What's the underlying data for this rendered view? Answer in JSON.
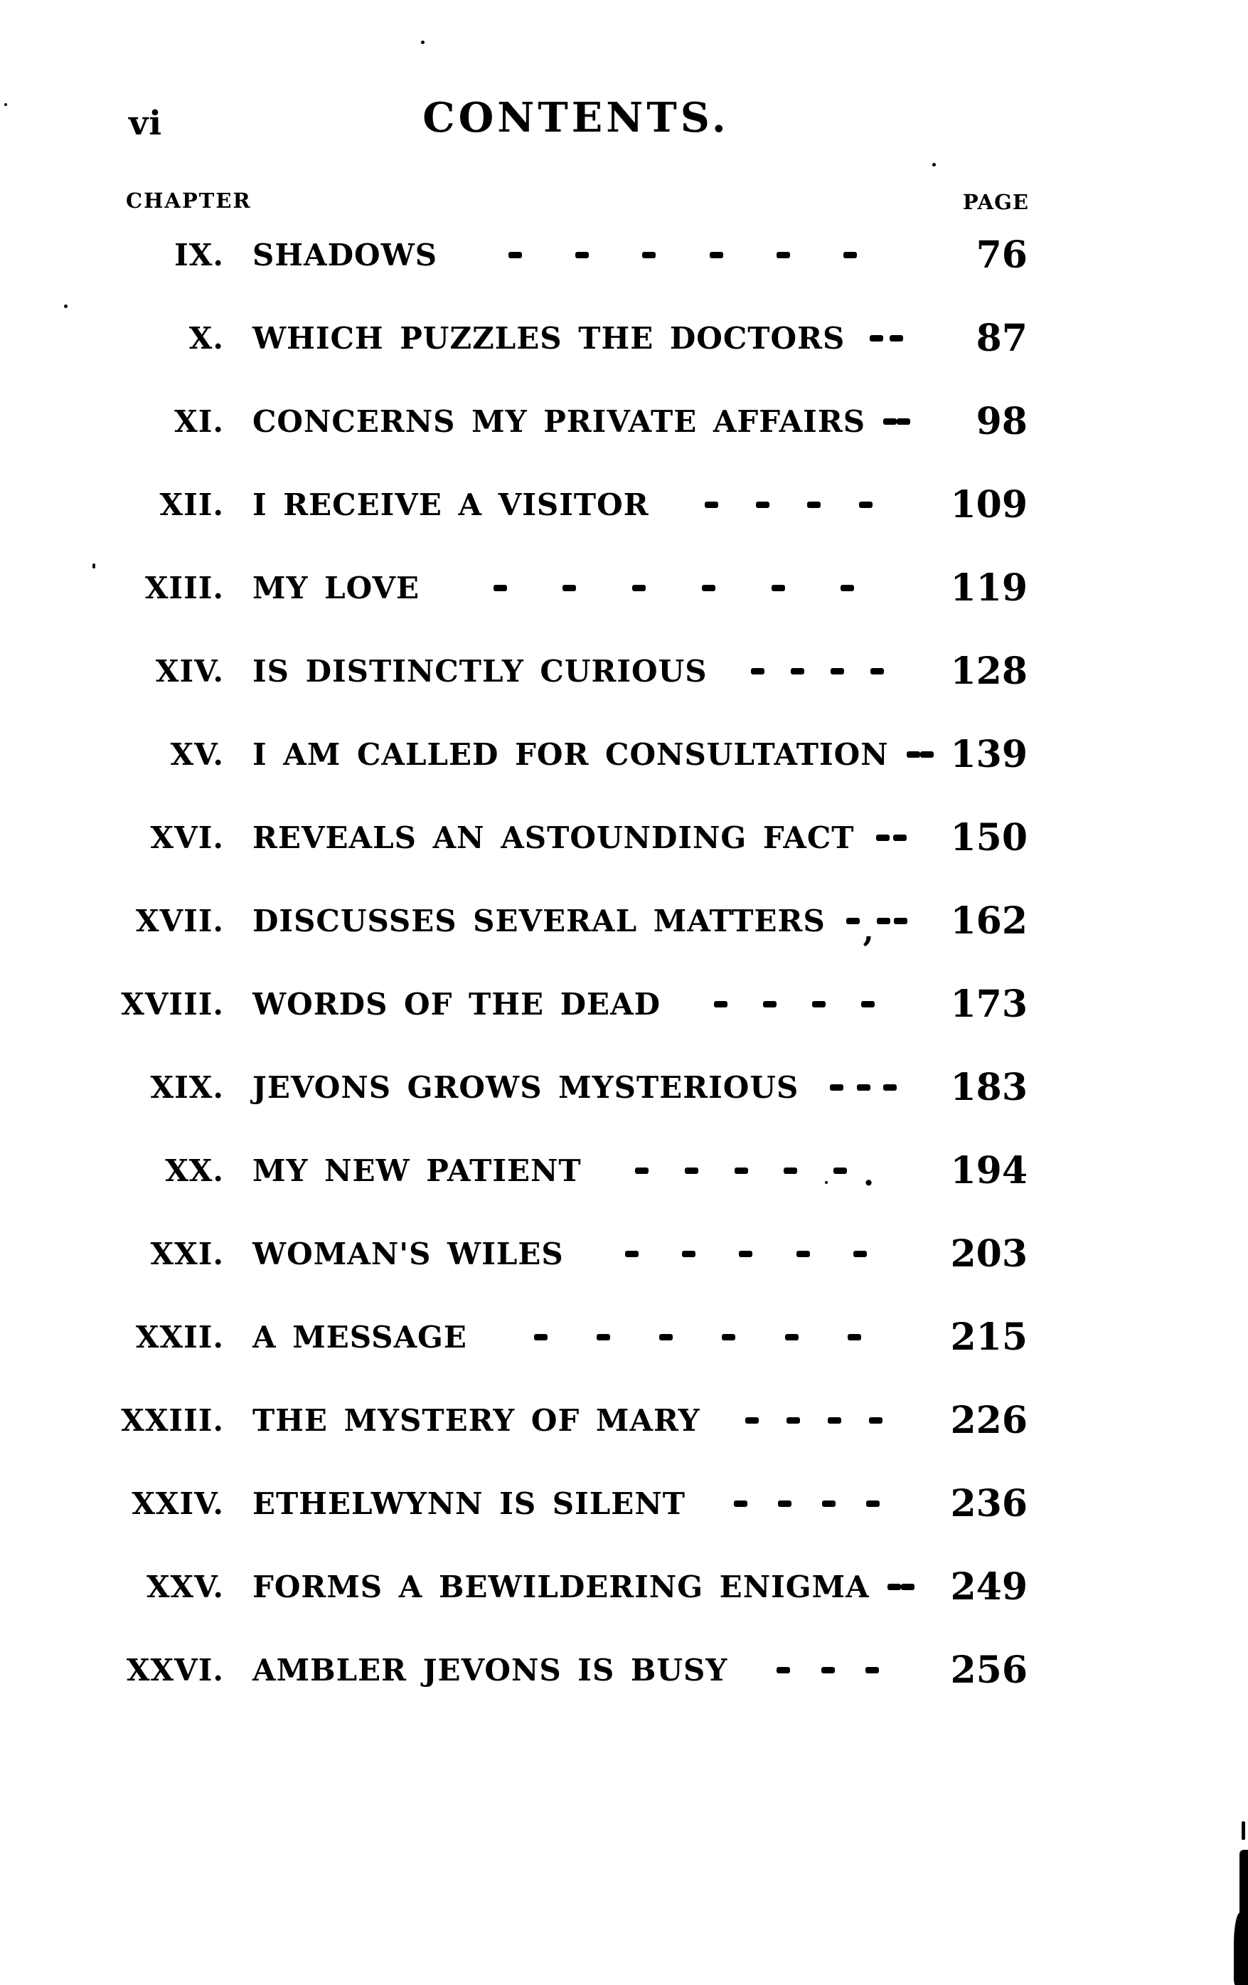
{
  "page": {
    "folio": "vi",
    "title": "CONTENTS.",
    "chapter_label": "CHAPTER",
    "page_label": "PAGE"
  },
  "toc": {
    "entries": [
      {
        "numeral": "IX.",
        "title": "SHADOWS",
        "dashes": 6,
        "page": "76"
      },
      {
        "numeral": "X.",
        "title": "WHICH PUZZLES THE DOCTORS",
        "dashes": 2,
        "page": "87"
      },
      {
        "numeral": "XI.",
        "title": "CONCERNS MY PRIVATE AFFAIRS",
        "dashes": 2,
        "page": "98"
      },
      {
        "numeral": "XII.",
        "title": "I RECEIVE A VISITOR",
        "dashes": 4,
        "page": "109"
      },
      {
        "numeral": "XIII.",
        "title": "MY LOVE",
        "dashes": 6,
        "page": "119"
      },
      {
        "numeral": "XIV.",
        "title": "IS DISTINCTLY CURIOUS",
        "dashes": 4,
        "page": "128"
      },
      {
        "numeral": "XV.",
        "title": "I AM CALLED FOR CONSULTATION",
        "dashes": 2,
        "page": "139"
      },
      {
        "numeral": "XVI.",
        "title": "REVEALS AN ASTOUNDING FACT",
        "dashes": 2,
        "page": "150"
      },
      {
        "numeral": "XVII.",
        "title": "DISCUSSES SEVERAL MATTERS",
        "dashes": 3,
        "page": "162",
        "mark": ","
      },
      {
        "numeral": "XVIII.",
        "title": "WORDS OF THE DEAD",
        "dashes": 4,
        "page": "173"
      },
      {
        "numeral": "XIX.",
        "title": "JEVONS GROWS MYSTERIOUS",
        "dashes": 3,
        "page": "183"
      },
      {
        "numeral": "XX.",
        "title": "MY NEW PATIENT",
        "dashes": 5,
        "page": "194",
        "mark": "."
      },
      {
        "numeral": "XXI.",
        "title": "WOMAN'S WILES",
        "dashes": 5,
        "page": "203"
      },
      {
        "numeral": "XXII.",
        "title": "A MESSAGE",
        "dashes": 6,
        "page": "215"
      },
      {
        "numeral": "XXIII.",
        "title": "THE MYSTERY OF MARY",
        "dashes": 4,
        "page": "226"
      },
      {
        "numeral": "XXIV.",
        "title": "ETHELWYNN IS SILENT",
        "dashes": 4,
        "page": "236"
      },
      {
        "numeral": "XXV.",
        "title": "FORMS A BEWILDERING ENIGMA",
        "dashes": 2,
        "page": "249"
      },
      {
        "numeral": "XXVI.",
        "title": "AMBLER JEVONS IS BUSY",
        "dashes": 3,
        "page": "256"
      }
    ]
  },
  "colors": {
    "ink": "#000000",
    "paper": "#ffffff"
  }
}
